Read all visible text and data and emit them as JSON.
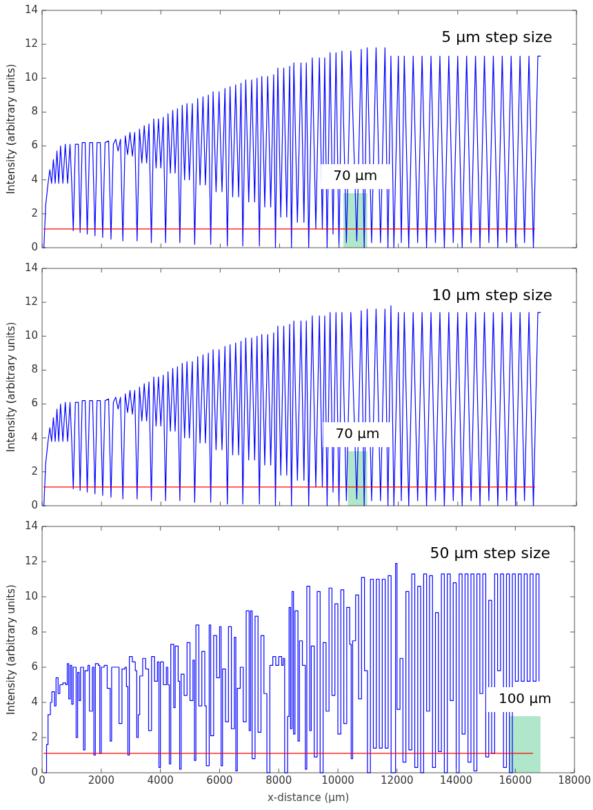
{
  "chart_data": [
    {
      "type": "line",
      "ylabel": "Intensity (arbitrary units)",
      "xlim": [
        0,
        18000
      ],
      "xticks": [
        0,
        2000,
        4000,
        6000,
        8000,
        10000,
        12000,
        14000,
        16000,
        18000
      ],
      "ylim": [
        0,
        14
      ],
      "yticks": [
        0,
        2,
        4,
        6,
        8,
        10,
        12,
        14
      ],
      "tick_labels": "y",
      "annotations": [
        "5 μm step size"
      ],
      "ref_lines": [
        {
          "axis": "y",
          "value": 1.1,
          "color": "#ff0000"
        }
      ],
      "bands": [
        {
          "axis": "x",
          "from": 10150,
          "to": 10950,
          "label": "70 μm",
          "color": "#8fdcb4"
        }
      ],
      "series": [
        {
          "color": "#0000ff",
          "x": [
            0,
            60,
            120,
            200,
            260,
            320,
            380,
            440,
            500,
            560,
            620,
            700,
            780,
            860,
            940,
            1000,
            1050,
            1120,
            1220,
            1280,
            1350,
            1450,
            1520,
            1600,
            1700,
            1780,
            1850,
            1960,
            2040,
            2120,
            2240,
            2320,
            2400,
            2480,
            2560,
            2640,
            2720,
            2800,
            2880,
            2960,
            3040,
            3120,
            3200,
            3280,
            3360,
            3440,
            3520,
            3600,
            3680,
            3760,
            3840,
            3920,
            4000,
            4080,
            4160,
            4240,
            4320,
            4400,
            4480,
            4560,
            4640,
            4720,
            4800,
            4880,
            4960,
            5060,
            5140,
            5240,
            5320,
            5420,
            5500,
            5600,
            5680,
            5760,
            5860,
            5960,
            6060,
            6160,
            6240,
            6330,
            6420,
            6520,
            6620,
            6700,
            6760,
            6860,
            6960,
            7060,
            7160,
            7240,
            7320,
            7400,
            7500,
            7600,
            7700,
            7800,
            7860,
            7940,
            8040,
            8140,
            8240,
            8340,
            8400,
            8480,
            8600,
            8720,
            8820,
            8900,
            8980,
            9100,
            9220,
            9340,
            9440,
            9520,
            9600,
            9700,
            9800,
            9900,
            10000,
            10100,
            10250,
            10400,
            10600,
            10750,
            10850,
            10950,
            11100,
            11250,
            11400,
            11550,
            11650,
            11750,
            11850,
            12000,
            12100,
            12200,
            12350,
            12500,
            12650,
            12800,
            12950,
            13100,
            13250,
            13400,
            13550,
            13700,
            13850,
            14000,
            14150,
            14300,
            14450,
            14600,
            14750,
            14900,
            15050,
            15200,
            15350,
            15500,
            15650,
            15800,
            15950,
            16100,
            16250,
            16400,
            16550,
            16700,
            16800
          ],
          "values": [
            0,
            0,
            2.5,
            3.8,
            4.6,
            3.8,
            5.2,
            3.8,
            5.7,
            3.8,
            6.0,
            3.8,
            6.1,
            3.8,
            6.1,
            3.7,
            1.0,
            6.1,
            6.1,
            0.9,
            6.2,
            6.2,
            0.8,
            6.2,
            6.2,
            0.7,
            6.2,
            6.2,
            0.6,
            6.2,
            6.3,
            0.5,
            6.1,
            6.4,
            5.7,
            6.4,
            0.4,
            6.6,
            5.5,
            6.8,
            5.4,
            6.8,
            0.4,
            7.0,
            5.0,
            7.2,
            5.0,
            7.3,
            0.3,
            7.6,
            4.7,
            7.6,
            4.7,
            7.7,
            0.3,
            7.9,
            4.4,
            8.1,
            4.4,
            8.2,
            0.3,
            8.4,
            4.0,
            8.5,
            4.0,
            8.5,
            0.2,
            8.8,
            3.7,
            8.9,
            3.7,
            9.0,
            0.2,
            9.2,
            3.3,
            9.2,
            3.3,
            9.4,
            0.1,
            9.5,
            3.0,
            9.6,
            3.0,
            9.7,
            0.1,
            9.9,
            2.7,
            9.9,
            2.7,
            10.0,
            0.1,
            10.1,
            2.4,
            10.1,
            2.4,
            10.2,
            0,
            10.6,
            1.8,
            10.6,
            1.8,
            10.7,
            0,
            10.9,
            1.5,
            10.9,
            1.5,
            10.9,
            0,
            11.2,
            1.1,
            11.2,
            1.1,
            11.2,
            0,
            11.5,
            0.8,
            11.5,
            0,
            11.6,
            0.3,
            11.6,
            0.4,
            11.7,
            0,
            11.8,
            0.3,
            11.8,
            0.3,
            11.8,
            0,
            11.3,
            0,
            11.3,
            0.3,
            11.3,
            0,
            11.3,
            0.3,
            11.3,
            0,
            11.3,
            0.3,
            11.3,
            0,
            11.3,
            0.3,
            11.3,
            0,
            11.3,
            0.3,
            11.3,
            0,
            11.3,
            0.3,
            11.3,
            0,
            11.3,
            0.3,
            11.3,
            0,
            11.3,
            0.3,
            11.3,
            0,
            11.3,
            11.3
          ]
        }
      ]
    },
    {
      "type": "line",
      "ylabel": "Intensity (arbitrary units)",
      "xlim": [
        0,
        18000
      ],
      "xticks": [
        0,
        2000,
        4000,
        6000,
        8000,
        10000,
        12000,
        14000,
        16000,
        18000
      ],
      "ylim": [
        0,
        14
      ],
      "yticks": [
        0,
        2,
        4,
        6,
        8,
        10,
        12,
        14
      ],
      "tick_labels": "y",
      "annotations": [
        "10 μm step size"
      ],
      "ref_lines": [
        {
          "axis": "y",
          "value": 1.1,
          "color": "#ff0000"
        }
      ],
      "bands": [
        {
          "axis": "x",
          "from": 10300,
          "to": 10950,
          "label": "70 μm",
          "color": "#8fdcb4"
        }
      ],
      "series": [
        {
          "color": "#0000ff",
          "x": [
            0,
            60,
            120,
            200,
            260,
            320,
            380,
            440,
            500,
            560,
            620,
            700,
            780,
            860,
            940,
            1000,
            1050,
            1120,
            1220,
            1280,
            1350,
            1450,
            1520,
            1600,
            1700,
            1780,
            1850,
            1960,
            2040,
            2120,
            2240,
            2320,
            2400,
            2480,
            2560,
            2640,
            2720,
            2800,
            2880,
            2960,
            3040,
            3120,
            3200,
            3280,
            3360,
            3440,
            3520,
            3600,
            3680,
            3760,
            3840,
            3920,
            4000,
            4080,
            4160,
            4240,
            4320,
            4400,
            4480,
            4560,
            4640,
            4720,
            4800,
            4880,
            4960,
            5060,
            5140,
            5240,
            5320,
            5420,
            5500,
            5600,
            5680,
            5760,
            5860,
            5960,
            6060,
            6160,
            6240,
            6330,
            6420,
            6520,
            6620,
            6700,
            6760,
            6860,
            6960,
            7060,
            7160,
            7240,
            7320,
            7400,
            7500,
            7600,
            7700,
            7800,
            7860,
            7940,
            8040,
            8140,
            8240,
            8340,
            8400,
            8480,
            8600,
            8720,
            8820,
            8900,
            8980,
            9100,
            9220,
            9340,
            9440,
            9520,
            9600,
            9700,
            9800,
            9900,
            10000,
            10100,
            10250,
            10400,
            10600,
            10750,
            10850,
            10950,
            11100,
            11250,
            11400,
            11550,
            11650,
            11750,
            11850,
            12000,
            12100,
            12200,
            12350,
            12500,
            12650,
            12800,
            12950,
            13100,
            13250,
            13400,
            13550,
            13700,
            13850,
            14000,
            14150,
            14300,
            14450,
            14600,
            14750,
            14900,
            15050,
            15200,
            15350,
            15500,
            15650,
            15800,
            15950,
            16100,
            16250,
            16400,
            16550,
            16700,
            16800
          ],
          "values": [
            0,
            0,
            2.5,
            3.8,
            4.6,
            3.8,
            5.2,
            3.8,
            5.7,
            3.8,
            6.0,
            3.8,
            6.1,
            3.8,
            6.1,
            3.7,
            1.0,
            6.1,
            6.1,
            0.9,
            6.2,
            6.2,
            0.8,
            6.2,
            6.2,
            0.7,
            6.2,
            6.2,
            0.6,
            6.2,
            6.3,
            0.5,
            6.1,
            6.4,
            5.7,
            6.4,
            0.4,
            6.6,
            5.5,
            6.8,
            5.4,
            6.8,
            0.4,
            7.0,
            5.0,
            7.2,
            5.0,
            7.3,
            0.3,
            7.6,
            4.7,
            7.6,
            4.7,
            7.7,
            0.3,
            7.9,
            4.4,
            8.1,
            4.4,
            8.2,
            0.3,
            8.4,
            4.0,
            8.5,
            4.0,
            8.5,
            0.2,
            8.8,
            3.7,
            8.9,
            3.7,
            9.0,
            0.2,
            9.2,
            3.3,
            9.2,
            3.3,
            9.4,
            0.1,
            9.5,
            3.0,
            9.6,
            3.0,
            9.7,
            0.1,
            9.9,
            2.7,
            9.9,
            2.7,
            10.0,
            0.1,
            10.1,
            2.4,
            10.1,
            2.4,
            10.2,
            0,
            10.6,
            1.8,
            10.6,
            1.8,
            10.7,
            0,
            10.9,
            1.5,
            10.9,
            1.5,
            10.9,
            0,
            11.2,
            1.1,
            11.2,
            1.1,
            11.2,
            0,
            11.4,
            0.8,
            11.4,
            0,
            11.4,
            0.3,
            11.4,
            0.4,
            11.5,
            0,
            11.6,
            0.3,
            11.6,
            0.3,
            11.6,
            0,
            11.8,
            0,
            11.4,
            0.3,
            11.4,
            0,
            11.4,
            0.3,
            11.4,
            0,
            11.4,
            0.3,
            11.4,
            0,
            11.4,
            0.3,
            11.4,
            0,
            11.4,
            0.3,
            11.4,
            0,
            11.4,
            0.3,
            11.4,
            0,
            11.4,
            0.3,
            11.4,
            0,
            11.4,
            0.3,
            11.4,
            0,
            11.4,
            11.4
          ]
        }
      ]
    },
    {
      "type": "step",
      "xlabel": "x-distance (μm)",
      "ylabel": "Intensity (arbitrary units)",
      "xlim": [
        0,
        18000
      ],
      "xticks": [
        0,
        2000,
        4000,
        6000,
        8000,
        10000,
        12000,
        14000,
        16000,
        18000
      ],
      "ylim": [
        0,
        14
      ],
      "yticks": [
        0,
        2,
        4,
        6,
        8,
        10,
        12,
        14
      ],
      "annotations": [
        "50 μm step size"
      ],
      "ref_lines": [
        {
          "axis": "y",
          "value": 1.1,
          "color": "#ff0000"
        }
      ],
      "bands": [
        {
          "axis": "x",
          "from": 15800,
          "to": 16850,
          "label": "100 μm",
          "color": "#8fdcb4"
        }
      ],
      "series": [
        {
          "color": "#0000ff",
          "x": [
            100,
            150,
            200,
            280,
            330,
            420,
            470,
            540,
            600,
            700,
            800,
            850,
            900,
            950,
            1000,
            1050,
            1150,
            1200,
            1250,
            1300,
            1400,
            1450,
            1550,
            1600,
            1700,
            1750,
            1800,
            1900,
            1950,
            2000,
            2100,
            2200,
            2300,
            2350,
            2500,
            2600,
            2700,
            2800,
            2850,
            2900,
            2950,
            3050,
            3150,
            3200,
            3250,
            3300,
            3400,
            3500,
            3600,
            3700,
            3800,
            3900,
            3950,
            4000,
            4100,
            4200,
            4250,
            4300,
            4350,
            4450,
            4500,
            4600,
            4650,
            4700,
            4800,
            4900,
            5000,
            5100,
            5150,
            5200,
            5300,
            5400,
            5500,
            5550,
            5650,
            5700,
            5800,
            5900,
            6000,
            6050,
            6100,
            6200,
            6300,
            6400,
            6500,
            6550,
            6600,
            6700,
            6800,
            6900,
            7000,
            7050,
            7100,
            7200,
            7300,
            7400,
            7500,
            7600,
            7700,
            7800,
            7900,
            8000,
            8100,
            8150,
            8200,
            8300,
            8350,
            8400,
            8450,
            8500,
            8550,
            8650,
            8700,
            8800,
            8900,
            8950,
            9050,
            9100,
            9200,
            9300,
            9400,
            9500,
            9600,
            9700,
            9800,
            9900,
            10000,
            10100,
            10200,
            10300,
            10400,
            10450,
            10500,
            10600,
            10700,
            10800,
            10900,
            11000,
            11100,
            11200,
            11300,
            11400,
            11500,
            11600,
            11700,
            11800,
            11950,
            12000,
            12100,
            12200,
            12300,
            12400,
            12500,
            12600,
            12700,
            12800,
            12900,
            13000,
            13100,
            13200,
            13300,
            13400,
            13500,
            13600,
            13700,
            13800,
            13900,
            14000,
            14100,
            14200,
            14300,
            14400,
            14500,
            14600,
            14700,
            14800,
            14900,
            15000,
            15100,
            15200,
            15300,
            15400,
            15500,
            15600,
            15700,
            15800,
            15900,
            16000,
            16100,
            16200,
            16300,
            16400,
            16500,
            16600,
            16700,
            16800
          ],
          "values": [
            0,
            1.6,
            3.3,
            4.0,
            4.6,
            3.8,
            5.4,
            4.5,
            5.0,
            5.1,
            5.0,
            6.2,
            4.2,
            6.1,
            3.9,
            6.0,
            2.0,
            5.7,
            4.1,
            6.0,
            1.3,
            5.8,
            6.1,
            3.5,
            6.0,
            1.0,
            6.2,
            6.1,
            1.1,
            6.0,
            6.1,
            4.8,
            1.8,
            6.0,
            6.0,
            2.8,
            5.9,
            6.0,
            4.9,
            1.0,
            6.6,
            6.3,
            5.8,
            2.0,
            3.3,
            5.5,
            6.5,
            5.9,
            2.4,
            6.6,
            5.2,
            6.3,
            0.3,
            6.3,
            5.0,
            6.0,
            5.0,
            0.5,
            7.3,
            3.7,
            7.2,
            5.2,
            0.2,
            5.6,
            4.4,
            7.4,
            4.1,
            6.4,
            0.7,
            8.4,
            3.8,
            6.9,
            3.8,
            0.4,
            8.4,
            2.1,
            7.8,
            5.4,
            8.3,
            0.4,
            5.9,
            2.9,
            8.3,
            2.5,
            7.7,
            0.1,
            4.8,
            6.0,
            2.9,
            9.2,
            2.4,
            9.2,
            0.8,
            8.9,
            2.3,
            7.8,
            4.5,
            0,
            6.1,
            6.6,
            6.1,
            6.6,
            6.1,
            6.5,
            0,
            3.2,
            9.4,
            2.5,
            10.3,
            2.2,
            9.2,
            1.8,
            7.5,
            6.1,
            0.2,
            10.6,
            2.4,
            7.2,
            0.9,
            10.3,
            0,
            7.4,
            3.5,
            10.5,
            4.4,
            9.6,
            2.2,
            10.4,
            2.8,
            9.4,
            7.3,
            0.8,
            7.5,
            10.1,
            4.2,
            11.1,
            5.8,
            0,
            11.0,
            1.4,
            11.0,
            1.4,
            11.0,
            1.4,
            11.2,
            0,
            11.9,
            3.6,
            6.5,
            0.6,
            10.3,
            1.3,
            11.3,
            0.3,
            10.6,
            0,
            11.3,
            3.5,
            11.2,
            0.3,
            9.1,
            1.2,
            11.3,
            0,
            11.3,
            4.1,
            10.8,
            0,
            11.3,
            2.2,
            11.3,
            0.6,
            11.3,
            0.1,
            11.3,
            4.5,
            11.3,
            0.9,
            9.8,
            1.1,
            11.3,
            5.8,
            11.3,
            0.3,
            11.3,
            0,
            11.3,
            5.2,
            11.3,
            5.2,
            11.3,
            5.2,
            11.3,
            5.2,
            11.3,
            5.2
          ]
        }
      ]
    }
  ]
}
